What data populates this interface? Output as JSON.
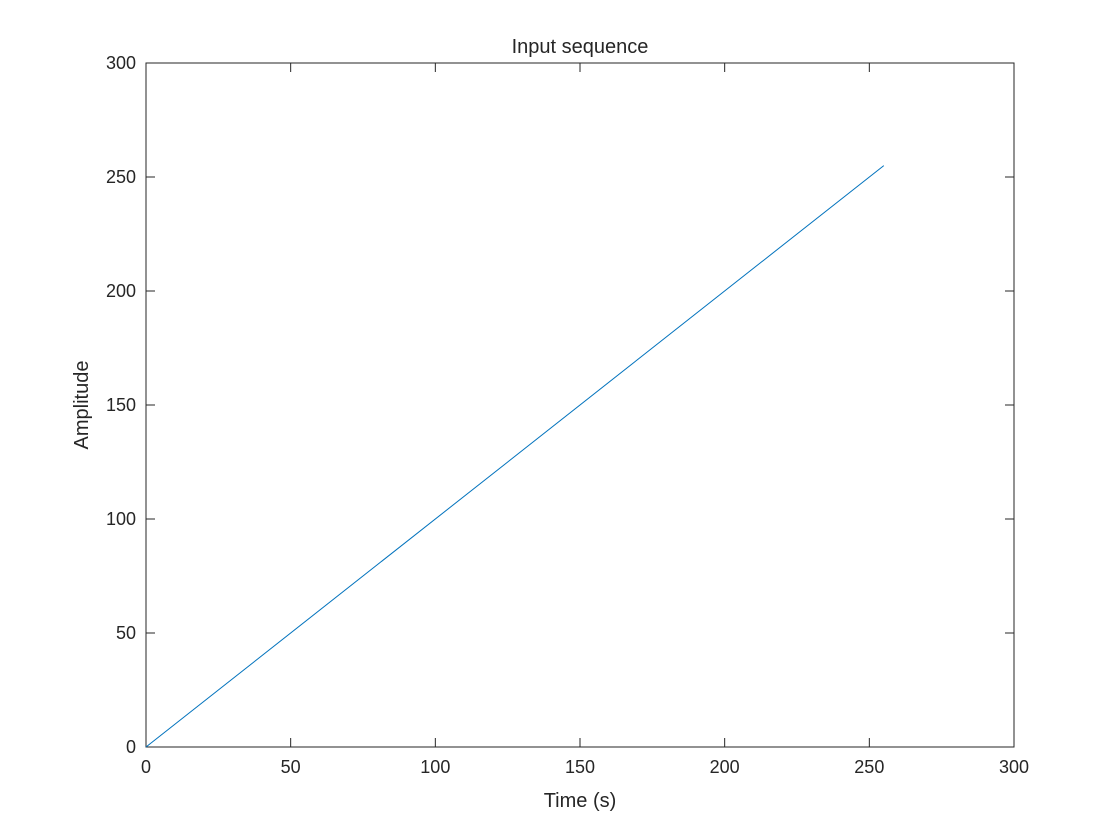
{
  "chart_data": {
    "type": "line",
    "title": "Input sequence",
    "xlabel": "Time (s)",
    "ylabel": "Amplitude",
    "xlim": [
      0,
      300
    ],
    "ylim": [
      0,
      300
    ],
    "xticks": [
      "0",
      "50",
      "100",
      "150",
      "200",
      "250",
      "300"
    ],
    "yticks": [
      "0",
      "50",
      "100",
      "150",
      "200",
      "250",
      "300"
    ],
    "grid": false,
    "legend": "none",
    "series": [
      {
        "color": "#0072BD",
        "x": [
          0,
          255
        ],
        "y": [
          0,
          255
        ]
      }
    ]
  }
}
